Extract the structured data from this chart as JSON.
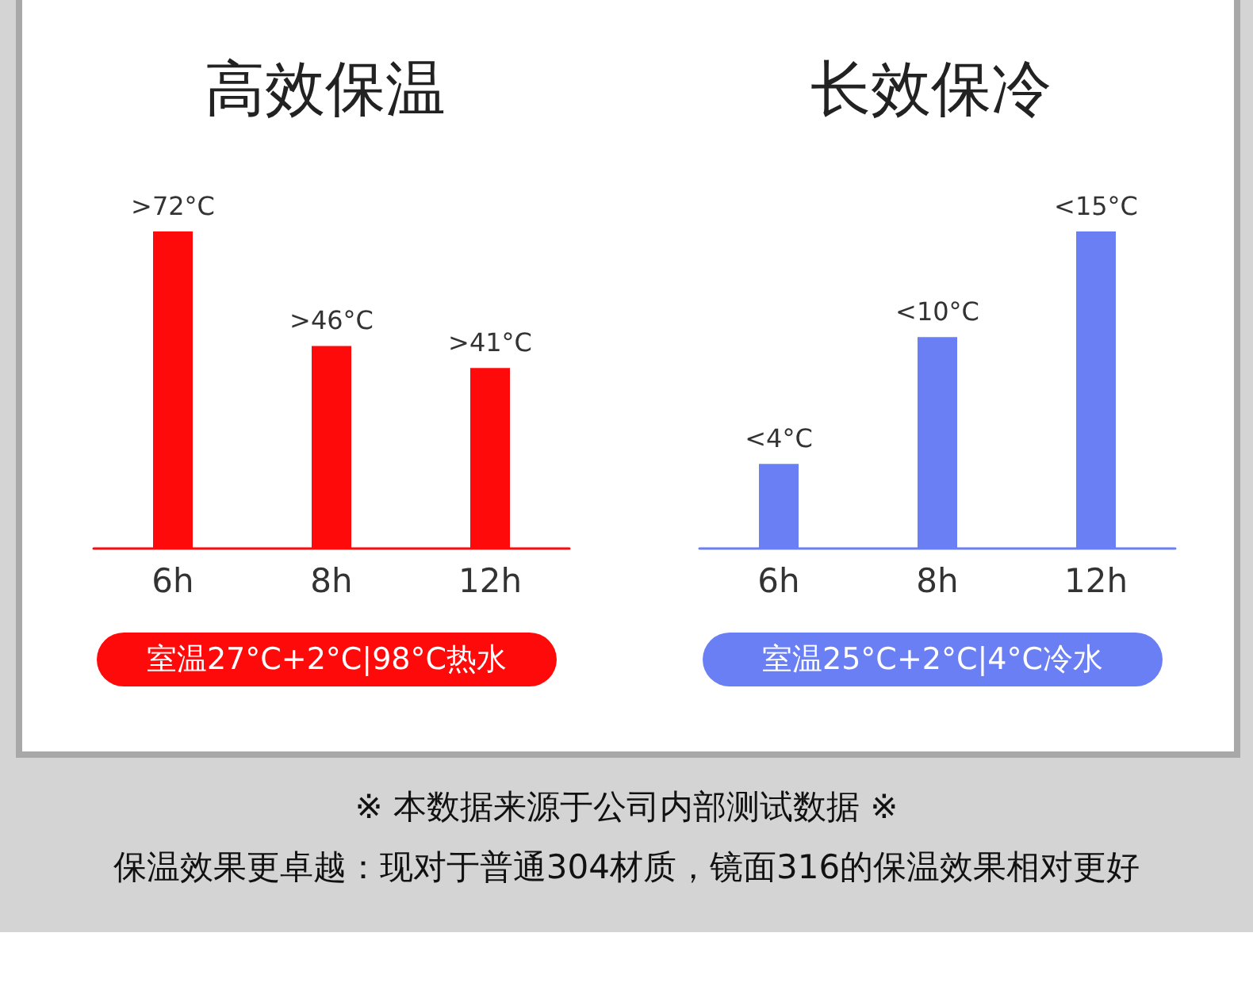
{
  "chart_data": [
    {
      "type": "bar",
      "title": "高效保温",
      "categories": [
        "6h",
        "8h",
        "12h"
      ],
      "values": [
        72,
        46,
        41
      ],
      "value_labels": [
        ">72°C",
        ">46°C",
        ">41°C"
      ],
      "color": "#ff0a0a",
      "annotations": [
        "室温27°C+2°C|98°C热水"
      ]
    },
    {
      "type": "bar",
      "title": "长效保冷",
      "categories": [
        "6h",
        "8h",
        "12h"
      ],
      "values": [
        4,
        10,
        15
      ],
      "value_labels": [
        "<4°C",
        "<10°C",
        "<15°C"
      ],
      "color": "#6b7ff5",
      "annotations": [
        "室温25°C+2°C|4°C冷水",
        "※  本数据来源于公司内部测试数据  ※",
        "保温效果更卓越：现对于普通304材质，镜面316的保温效果相对更好"
      ]
    }
  ]
}
